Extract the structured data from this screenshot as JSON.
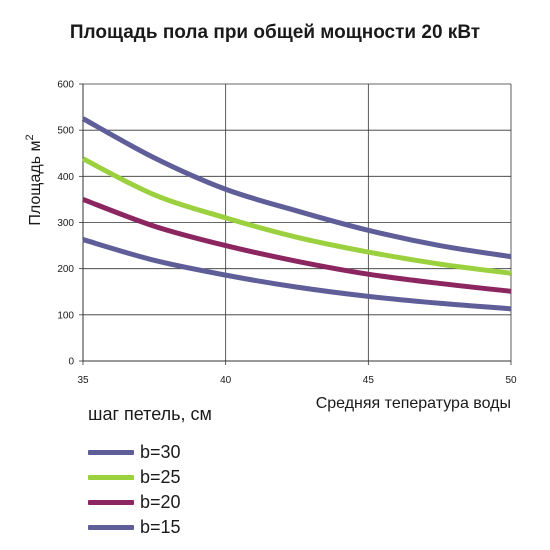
{
  "chart_data": {
    "type": "line",
    "title": "Площадь пола при общей мощности 20 кВт",
    "xlabel": "Средняя тепература воды",
    "ylabel": "Площадь м",
    "ylabel_superscript": "2",
    "xlim": [
      35,
      50
    ],
    "ylim": [
      0,
      600
    ],
    "xticks": [
      "35",
      "40",
      "45",
      "50"
    ],
    "yticks": [
      "0",
      "100",
      "200",
      "300",
      "400",
      "500",
      "600"
    ],
    "grid": true,
    "legend_title": "шаг петель, см",
    "legend_position": "bottom-left",
    "x": [
      35,
      37.5,
      40,
      42.5,
      45,
      47.5,
      50
    ],
    "series": [
      {
        "name": "b=30",
        "color": "#5f5e99",
        "values": [
          525,
          440,
          372,
          325,
          283,
          250,
          226
        ]
      },
      {
        "name": "b=25",
        "color": "#9bd03e",
        "values": [
          438,
          360,
          310,
          268,
          236,
          210,
          190
        ]
      },
      {
        "name": "b=20",
        "color": "#8c2660",
        "values": [
          350,
          292,
          250,
          216,
          188,
          168,
          151
        ]
      },
      {
        "name": "b=15",
        "color": "#5f5e99",
        "values": [
          263,
          218,
          186,
          160,
          140,
          125,
          113
        ]
      }
    ]
  }
}
